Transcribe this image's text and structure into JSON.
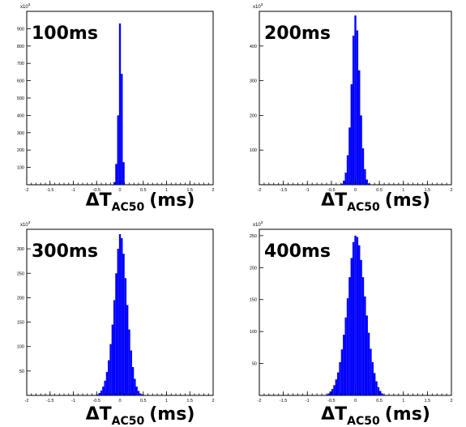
{
  "chart_data": [
    {
      "type": "bar",
      "annotation": "100ms",
      "xlabel": {
        "symbol": "ΔT",
        "subscript": "AC50",
        "unit": "(ms)"
      },
      "xlim": [
        -2,
        2
      ],
      "ylim": [
        0,
        1000
      ],
      "y_multiplier": "x10^3",
      "x_ticks": [
        "-2",
        "-1.5",
        "-1",
        "-0.5",
        "0",
        "0.5",
        "1",
        "1.5",
        "2"
      ],
      "y_ticks": [
        "100",
        "200",
        "300",
        "400",
        "500",
        "600",
        "700",
        "800",
        "900"
      ],
      "bin_width": 0.04,
      "x": [
        -0.12,
        -0.08,
        -0.04,
        0.0,
        0.04,
        0.08
      ],
      "values": [
        15,
        120,
        400,
        930,
        640,
        130
      ]
    },
    {
      "type": "bar",
      "annotation": "200ms",
      "xlabel": {
        "symbol": "ΔT",
        "subscript": "AC50",
        "unit": "(ms)"
      },
      "xlim": [
        -2,
        2
      ],
      "ylim": [
        0,
        500
      ],
      "y_multiplier": "x10^3",
      "x_ticks": [
        "-2",
        "-1.5",
        "-1",
        "-0.5",
        "0",
        "0.5",
        "1",
        "1.5",
        "2"
      ],
      "y_ticks": [
        "100",
        "200",
        "300",
        "400"
      ],
      "bin_width": 0.04,
      "x": [
        -0.28,
        -0.24,
        -0.2,
        -0.16,
        -0.12,
        -0.08,
        -0.04,
        0.0,
        0.04,
        0.08,
        0.12,
        0.16,
        0.2,
        0.24,
        0.28
      ],
      "values": [
        3,
        12,
        35,
        85,
        165,
        290,
        430,
        488,
        445,
        330,
        200,
        105,
        45,
        15,
        4
      ]
    },
    {
      "type": "bar",
      "annotation": "300ms",
      "xlabel": {
        "symbol": "ΔT",
        "subscript": "AC50",
        "unit": "(ms)"
      },
      "xlim": [
        -2,
        2
      ],
      "ylim": [
        0,
        340
      ],
      "y_multiplier": "x10^3",
      "x_ticks": [
        "-2",
        "-1.5",
        "-1",
        "-0.5",
        "0",
        "0.5",
        "1",
        "1.5",
        "2"
      ],
      "y_ticks": [
        "50",
        "100",
        "150",
        "200",
        "250",
        "300"
      ],
      "bin_width": 0.04,
      "x": [
        -0.48,
        -0.44,
        -0.4,
        -0.36,
        -0.32,
        -0.28,
        -0.24,
        -0.2,
        -0.16,
        -0.12,
        -0.08,
        -0.04,
        0.0,
        0.04,
        0.08,
        0.12,
        0.16,
        0.2,
        0.24,
        0.28,
        0.32,
        0.36,
        0.4,
        0.44,
        0.48
      ],
      "values": [
        2,
        5,
        10,
        18,
        30,
        48,
        72,
        105,
        145,
        195,
        250,
        300,
        330,
        322,
        290,
        240,
        185,
        135,
        92,
        58,
        34,
        18,
        9,
        4,
        2
      ]
    },
    {
      "type": "bar",
      "annotation": "400ms",
      "xlabel": {
        "symbol": "ΔT",
        "subscript": "AC50",
        "unit": "(ms)"
      },
      "xlim": [
        -2,
        2
      ],
      "ylim": [
        0,
        260
      ],
      "y_multiplier": "x10^3",
      "x_ticks": [
        "-2",
        "-1.5",
        "-1",
        "-0.5",
        "0",
        "0.5",
        "1",
        "1.5",
        "2"
      ],
      "y_ticks": [
        "50",
        "100",
        "150",
        "200",
        "250"
      ],
      "bin_width": 0.04,
      "x": [
        -0.6,
        -0.56,
        -0.52,
        -0.48,
        -0.44,
        -0.4,
        -0.36,
        -0.32,
        -0.28,
        -0.24,
        -0.2,
        -0.16,
        -0.12,
        -0.08,
        -0.04,
        0.0,
        0.04,
        0.08,
        0.12,
        0.16,
        0.2,
        0.24,
        0.28,
        0.32,
        0.36,
        0.4,
        0.44,
        0.48,
        0.52,
        0.56,
        0.6
      ],
      "values": [
        1,
        3,
        6,
        10,
        16,
        25,
        36,
        52,
        72,
        95,
        122,
        152,
        185,
        215,
        240,
        250,
        248,
        235,
        212,
        185,
        155,
        125,
        98,
        73,
        52,
        35,
        22,
        13,
        7,
        3,
        1
      ]
    }
  ]
}
